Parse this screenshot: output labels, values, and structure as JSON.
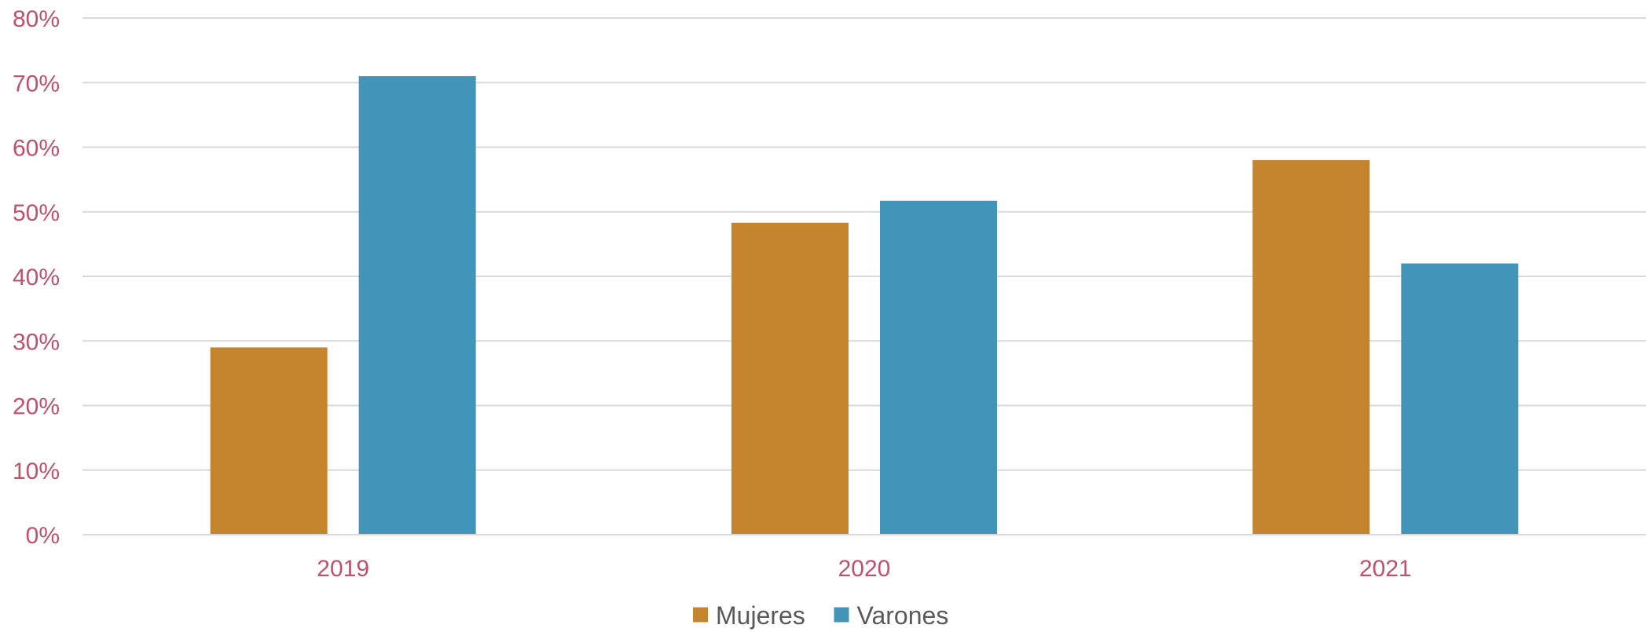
{
  "chart_data": {
    "type": "bar",
    "categories": [
      "2019",
      "2020",
      "2021"
    ],
    "series": [
      {
        "name": "Mujeres",
        "values": [
          29,
          48.3,
          58
        ],
        "color": "#C5852E"
      },
      {
        "name": "Varones",
        "values": [
          71,
          51.7,
          42
        ],
        "color": "#4294B8"
      }
    ],
    "title": "",
    "xlabel": "",
    "ylabel": "",
    "ylim": [
      0,
      80
    ],
    "yticks": [
      "0%",
      "10%",
      "20%",
      "30%",
      "40%",
      "50%",
      "60%",
      "70%",
      "80%"
    ],
    "ytick_values": [
      0,
      10,
      20,
      30,
      40,
      50,
      60,
      70,
      80
    ],
    "grid": true,
    "legend_position": "bottom"
  }
}
